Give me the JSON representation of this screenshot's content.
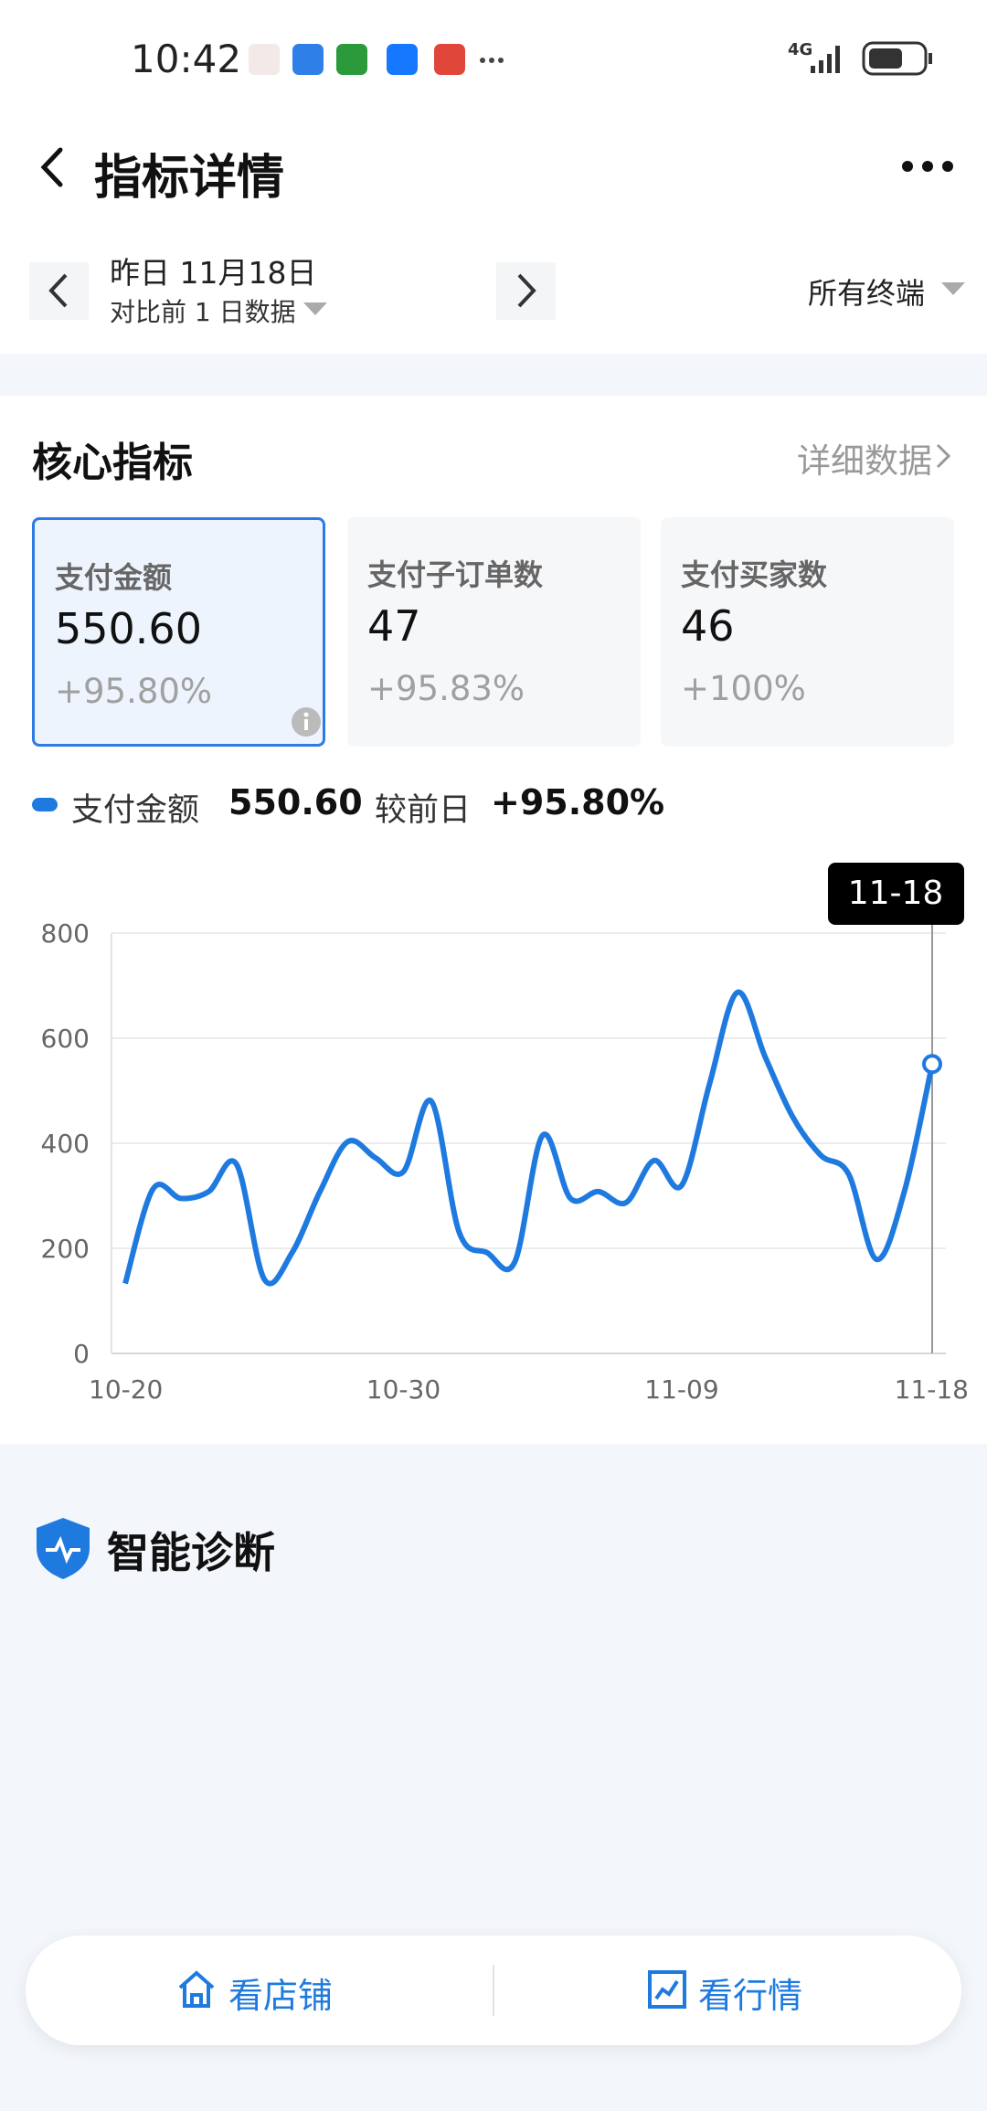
{
  "status_bar": {
    "time": "10:42",
    "network": "4G"
  },
  "header": {
    "title": "指标详情"
  },
  "date_bar": {
    "date": "昨日 11月18日",
    "compare": "对比前 1 日数据",
    "terminal": "所有终端"
  },
  "core": {
    "title": "核心指标",
    "link": "详细数据"
  },
  "cards": [
    {
      "label": "支付金额",
      "value": "550.60",
      "change": "+95.80%"
    },
    {
      "label": "支付子订单数",
      "value": "47",
      "change": "+95.83%"
    },
    {
      "label": "支付买家数",
      "value": "46",
      "change": "+100%"
    }
  ],
  "summary": {
    "value": "550.60",
    "compare_label": "较前日",
    "change": "+95.80%"
  },
  "chart_data": {
    "type": "line",
    "categories": [
      "10-20",
      null,
      null,
      null,
      null,
      null,
      null,
      null,
      null,
      null,
      "10-30",
      null,
      null,
      null,
      null,
      null,
      null,
      null,
      null,
      null,
      "11-09",
      null,
      null,
      null,
      null,
      null,
      null,
      null,
      null,
      "11-18"
    ],
    "series": [
      {
        "name": "支付金额",
        "color": "#1f7ae0",
        "values": [
          133,
          313,
          295,
          308,
          360,
          141,
          192,
          308,
          403,
          372,
          346,
          480,
          231,
          192,
          174,
          415,
          295,
          308,
          287,
          367,
          320,
          513,
          687,
          564,
          449,
          377,
          341,
          179,
          308,
          550.6
        ]
      }
    ],
    "ylim": [
      0,
      800
    ],
    "yticks": [
      0,
      200,
      400,
      600,
      800
    ],
    "grid": true
  },
  "diagnosis": {
    "title": "智能诊断"
  },
  "bottom_nav": [
    "看店铺",
    "看行情"
  ]
}
